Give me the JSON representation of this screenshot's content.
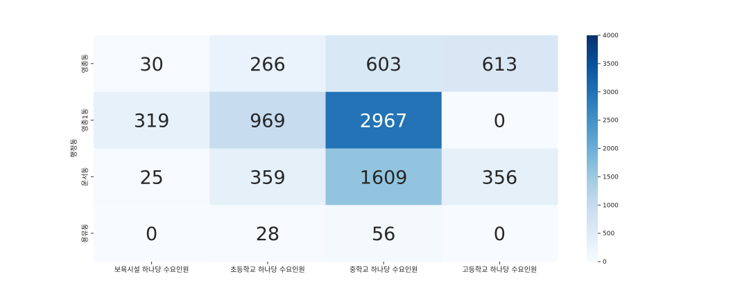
{
  "chart_data": {
    "type": "heatmap",
    "title": "",
    "xlabel": "",
    "ylabel": "행정동",
    "x_categories": [
      "보육시설 하나당 수요인원",
      "초등학교 하나당 수요인원",
      "중학교 하나당 수요인원",
      "고등학교 하나당 수요인원"
    ],
    "y_categories": [
      "영종동",
      "영종1동",
      "운서동",
      "용유동"
    ],
    "values": [
      [
        30,
        266,
        603,
        613
      ],
      [
        319,
        969,
        2967,
        0
      ],
      [
        25,
        359,
        1609,
        356
      ],
      [
        0,
        28,
        56,
        0
      ]
    ],
    "annotations": true,
    "colormap": "Blues",
    "vmin": 0,
    "vmax": 4000,
    "colorbar": {
      "ticks": [
        "0",
        "500",
        "1000",
        "1500",
        "2000",
        "2500",
        "3000",
        "3500",
        "4000"
      ],
      "position": "right"
    }
  }
}
